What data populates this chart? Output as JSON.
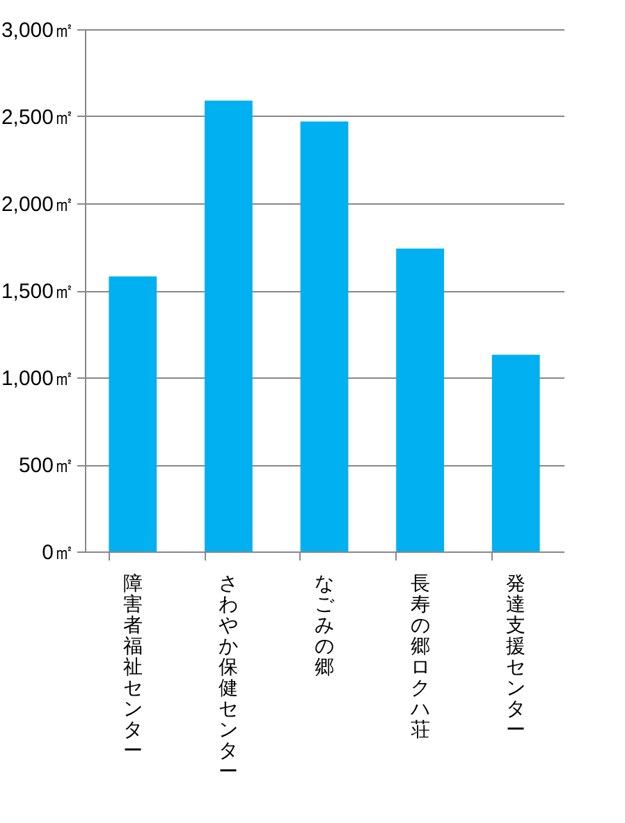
{
  "chart_data": {
    "type": "bar",
    "categories": [
      "障害者福祉センター",
      "さわやか保健センター",
      "なごみの郷",
      "長寿の郷ロクハ荘",
      "発達支援センター"
    ],
    "values": [
      1580,
      2590,
      2470,
      1740,
      1130
    ],
    "color": "#00b0f0",
    "ylim": [
      0,
      3000
    ],
    "yticks": [
      {
        "value": 0,
        "label": "0㎡"
      },
      {
        "value": 500,
        "label": "500㎡"
      },
      {
        "value": 1000,
        "label": "1,000㎡"
      },
      {
        "value": 1500,
        "label": "1,500㎡"
      },
      {
        "value": 2000,
        "label": "2,000㎡"
      },
      {
        "value": 2500,
        "label": "2,500㎡"
      },
      {
        "value": 3000,
        "label": "3,000㎡"
      }
    ],
    "grid": "y"
  }
}
